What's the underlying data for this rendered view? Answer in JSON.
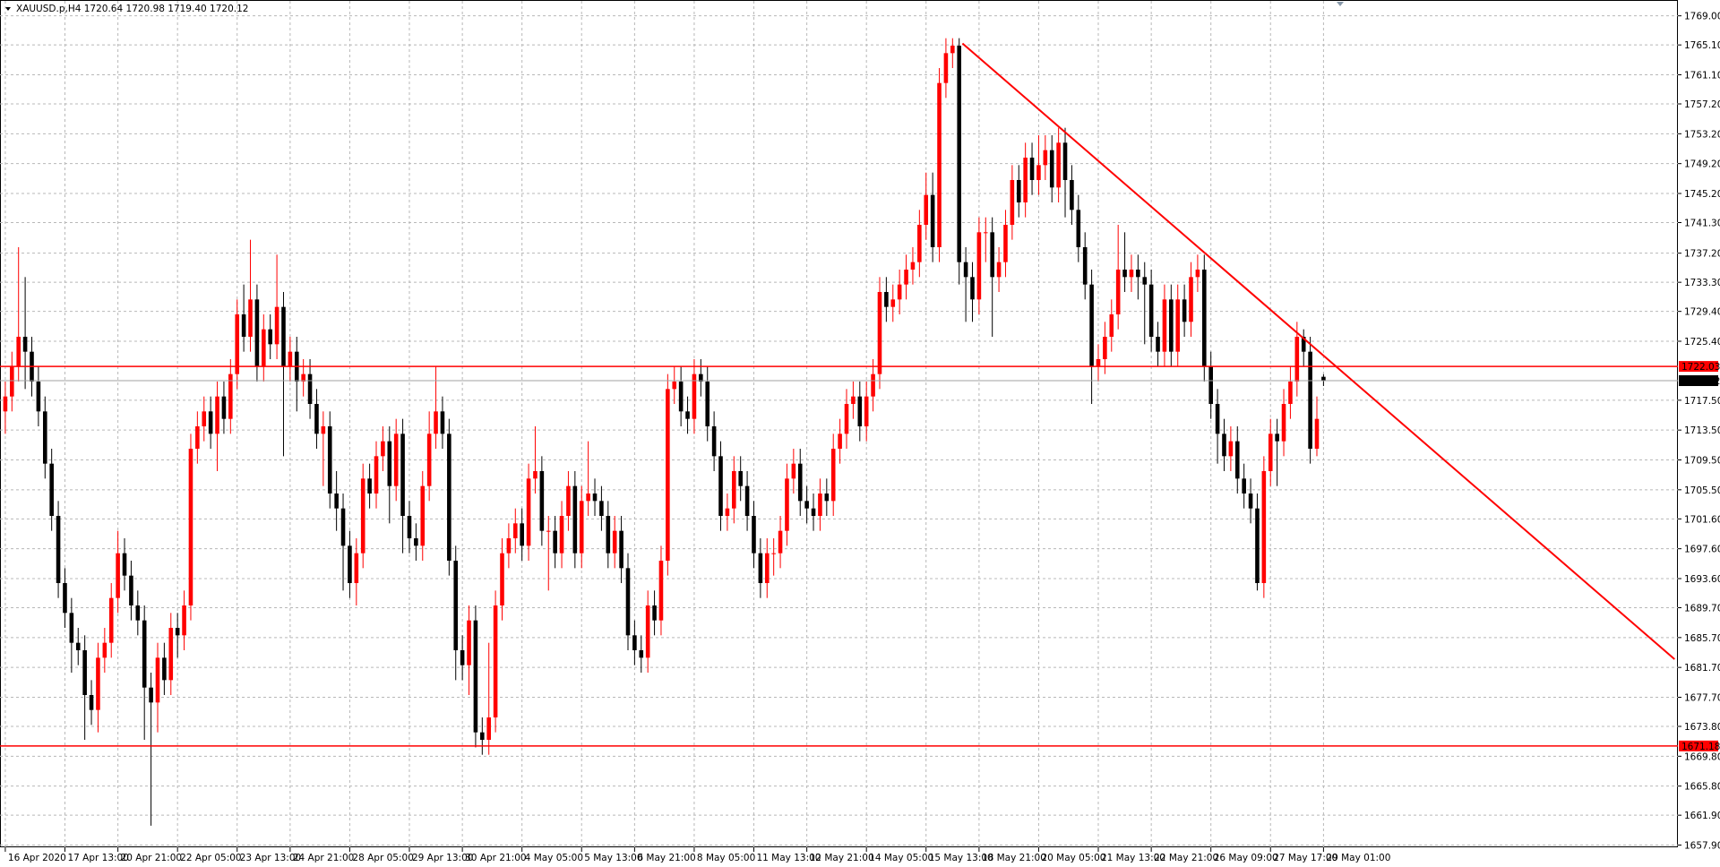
{
  "chart_data": {
    "type": "candlestick",
    "title": "XAUUSD.p,H4  1720.64 1720.98 1719.40 1720.12",
    "up_color": "#ff0000",
    "down_color": "#000000",
    "grid": true,
    "xlim": [
      -0.8,
      252.5
    ],
    "ylim": [
      1657.6,
      1771.0
    ],
    "yticks": [
      {
        "value": 1769,
        "label": "1769.00"
      },
      {
        "value": 1765.1,
        "label": "1765.10"
      },
      {
        "value": 1761.1,
        "label": "1761.10"
      },
      {
        "value": 1757.2,
        "label": "1757.20"
      },
      {
        "value": 1753.2,
        "label": "1753.20"
      },
      {
        "value": 1749.2,
        "label": "1749.20"
      },
      {
        "value": 1745.2,
        "label": "1745.20"
      },
      {
        "value": 1741.3,
        "label": "1741.30"
      },
      {
        "value": 1737.2,
        "label": "1737.20"
      },
      {
        "value": 1733.3,
        "label": "1733.30"
      },
      {
        "value": 1729.4,
        "label": "1729.40"
      },
      {
        "value": 1725.4,
        "label": "1725.40"
      },
      {
        "value": 1717.5,
        "label": "1717.50"
      },
      {
        "value": 1713.5,
        "label": "1713.50"
      },
      {
        "value": 1709.5,
        "label": "1709.50"
      },
      {
        "value": 1705.5,
        "label": "1705.50"
      },
      {
        "value": 1701.6,
        "label": "1701.60"
      },
      {
        "value": 1697.6,
        "label": "1697.60"
      },
      {
        "value": 1693.6,
        "label": "1693.60"
      },
      {
        "value": 1689.7,
        "label": "1689.70"
      },
      {
        "value": 1685.7,
        "label": "1685.70"
      },
      {
        "value": 1681.7,
        "label": "1681.70"
      },
      {
        "value": 1677.7,
        "label": "1677.70"
      },
      {
        "value": 1673.8,
        "label": "1673.80"
      },
      {
        "value": 1669.8,
        "label": "1669.80"
      },
      {
        "value": 1665.8,
        "label": "1665.80"
      },
      {
        "value": 1661.9,
        "label": "1661.90"
      },
      {
        "value": 1657.9,
        "label": "1657.90"
      }
    ],
    "categories": [
      "16 Apr 2020",
      null,
      null,
      null,
      null,
      null,
      null,
      null,
      null,
      "17 Apr 13:00",
      null,
      null,
      null,
      null,
      null,
      null,
      null,
      "20 Apr 21:00",
      null,
      null,
      null,
      null,
      null,
      null,
      null,
      null,
      "22 Apr 05:00",
      null,
      null,
      null,
      null,
      null,
      null,
      null,
      null,
      "23 Apr 13:00",
      null,
      null,
      null,
      null,
      null,
      null,
      null,
      "24 Apr 21:00",
      null,
      null,
      null,
      null,
      null,
      null,
      null,
      null,
      "28 Apr 05:00",
      null,
      null,
      null,
      null,
      null,
      null,
      null,
      null,
      "29 Apr 13:00",
      null,
      null,
      null,
      null,
      null,
      null,
      null,
      "30 Apr 21:00",
      null,
      null,
      null,
      null,
      null,
      null,
      null,
      null,
      "4 May 05:00",
      null,
      null,
      null,
      null,
      null,
      null,
      null,
      null,
      "5 May 13:00",
      null,
      null,
      null,
      null,
      null,
      null,
      null,
      "6 May 21:00",
      null,
      null,
      null,
      null,
      null,
      null,
      null,
      null,
      "8 May 05:00",
      null,
      null,
      null,
      null,
      null,
      null,
      null,
      null,
      "11 May 13:00",
      null,
      null,
      null,
      null,
      null,
      null,
      null,
      "12 May 21:00",
      null,
      null,
      null,
      null,
      null,
      null,
      null,
      null,
      "14 May 05:00",
      null,
      null,
      null,
      null,
      null,
      null,
      null,
      null,
      "15 May 13:00",
      null,
      null,
      null,
      null,
      null,
      null,
      null,
      "18 May 21:00",
      null,
      null,
      null,
      null,
      null,
      null,
      null,
      null,
      "20 May 05:00",
      null,
      null,
      null,
      null,
      null,
      null,
      null,
      null,
      "21 May 13:00",
      null,
      null,
      null,
      null,
      null,
      null,
      null,
      "22 May 21:00",
      null,
      null,
      null,
      null,
      null,
      null,
      null,
      null,
      "26 May 09:00",
      null,
      null,
      null,
      null,
      null,
      null,
      null,
      null,
      "27 May 17:00",
      null,
      null,
      null,
      null,
      null,
      null,
      null,
      "29 May 01:00"
    ],
    "open": [
      1716,
      1718,
      1722,
      1726,
      1724,
      1720,
      1716,
      1709,
      1702,
      1693,
      1689,
      1685,
      1684,
      1678,
      1676,
      1683,
      1685,
      1691,
      1697,
      1694,
      1690,
      1688,
      1679,
      1677,
      1683,
      1680,
      1687,
      1686,
      1690,
      1711,
      1714,
      1716,
      1713,
      1718,
      1715,
      1721,
      1729,
      1726,
      1731,
      1722,
      1727,
      1725,
      1730,
      1722,
      1724,
      1720,
      1721,
      1717,
      1713,
      1714,
      1705,
      1703,
      1698,
      1693,
      1697,
      1707,
      1705,
      1710,
      1712,
      1706,
      1713,
      1702,
      1699,
      1698,
      1706,
      1713,
      1716,
      1713,
      1696,
      1684,
      1682,
      1688,
      1673,
      1672,
      1675,
      1690,
      1697,
      1699,
      1701,
      1698,
      1707,
      1708,
      1700,
      1700,
      1697,
      1702,
      1706,
      1697,
      1704,
      1705,
      1704,
      1702,
      1697,
      1700,
      1695,
      1686,
      1684,
      1683,
      1690,
      1688,
      1696,
      1719,
      1720,
      1716,
      1715,
      1721,
      1720,
      1714,
      1710,
      1702,
      1703,
      1708,
      1706,
      1702,
      1697,
      1693,
      1697,
      1697,
      1700,
      1707,
      1709,
      1704,
      1703,
      1702,
      1705,
      1704,
      1711,
      1713,
      1717,
      1718,
      1714,
      1718,
      1721,
      1732,
      1730,
      1731,
      1733,
      1735,
      1736,
      1741,
      1745,
      1738,
      1760,
      1764,
      1765,
      1736,
      1734,
      1731,
      1740,
      1740,
      1734,
      1736,
      1741,
      1747,
      1744,
      1750,
      1747,
      1749,
      1751,
      1746,
      1752,
      1747,
      1743,
      1738,
      1733,
      1722,
      1723,
      1726,
      1729,
      1735,
      1734,
      1735,
      1734,
      1733,
      1726,
      1724,
      1731,
      1724,
      1731,
      1728,
      1734,
      1735,
      1722,
      1717,
      1713,
      1710,
      1712,
      1707,
      1705,
      1703,
      1693,
      1708,
      1713,
      1712,
      1717,
      1720,
      1726,
      1724,
      1711,
      1720.64
    ],
    "high": [
      1720,
      1724,
      1738,
      1734,
      1726,
      1722,
      1718,
      1711,
      1704,
      1695,
      1691,
      1687,
      1686,
      1680,
      1685,
      1687,
      1693,
      1700,
      1699,
      1696,
      1692,
      1690,
      1681,
      1685,
      1685,
      1689,
      1689,
      1692,
      1713,
      1716,
      1718,
      1718,
      1720,
      1720,
      1723,
      1731,
      1733,
      1739,
      1733,
      1729,
      1729,
      1737,
      1732,
      1726,
      1726,
      1723,
      1723,
      1719,
      1716,
      1716,
      1708,
      1705,
      1700,
      1699,
      1709,
      1709,
      1712,
      1714,
      1714,
      1715,
      1715,
      1704,
      1701,
      1708,
      1716,
      1722,
      1718,
      1715,
      1698,
      1686,
      1690,
      1690,
      1675,
      1685,
      1692,
      1699,
      1701,
      1703,
      1703,
      1709,
      1714,
      1710,
      1702,
      1702,
      1704,
      1708,
      1708,
      1706,
      1712,
      1707,
      1706,
      1704,
      1702,
      1702,
      1697,
      1688,
      1686,
      1692,
      1692,
      1698,
      1721,
      1722,
      1722,
      1718,
      1723,
      1723,
      1722,
      1716,
      1712,
      1705,
      1710,
      1710,
      1708,
      1704,
      1699,
      1699,
      1699,
      1702,
      1709,
      1711,
      1711,
      1706,
      1705,
      1707,
      1707,
      1713,
      1715,
      1719,
      1720,
      1720,
      1720,
      1723,
      1734,
      1734,
      1733,
      1735,
      1737,
      1738,
      1743,
      1748,
      1748,
      1762,
      1766,
      1766,
      1766,
      1738,
      1736,
      1742,
      1742,
      1742,
      1738,
      1743,
      1749,
      1749,
      1752,
      1752,
      1753,
      1753,
      1753,
      1754,
      1754,
      1749,
      1745,
      1740,
      1735,
      1725,
      1728,
      1731,
      1741,
      1740,
      1737,
      1737,
      1736,
      1735,
      1728,
      1733,
      1733,
      1733,
      1733,
      1736,
      1737,
      1737,
      1724,
      1719,
      1715,
      1714,
      1714,
      1709,
      1707,
      1705,
      1710,
      1715,
      1715,
      1719,
      1722,
      1728,
      1727,
      1726,
      1718,
      1720.98
    ],
    "low": [
      1713,
      1716,
      1720,
      1719,
      1718,
      1714,
      1707,
      1700,
      1691,
      1687,
      1681,
      1682,
      1672,
      1674,
      1673,
      1681,
      1683,
      1689,
      1692,
      1688,
      1686,
      1672,
      1660.5,
      1673,
      1678,
      1678,
      1683,
      1684,
      1688,
      1709,
      1712,
      1711,
      1708,
      1713,
      1713,
      1719,
      1724,
      1724,
      1720,
      1720,
      1723,
      1723,
      1710,
      1720,
      1716,
      1718,
      1715,
      1711,
      1706,
      1703,
      1700,
      1692,
      1691,
      1690,
      1695,
      1703,
      1703,
      1708,
      1701,
      1704,
      1697,
      1697,
      1696,
      1696,
      1704,
      1711,
      1711,
      1694,
      1680,
      1680,
      1678,
      1671,
      1670,
      1670,
      1673,
      1688,
      1695,
      1697,
      1696,
      1696,
      1705,
      1698,
      1692,
      1695,
      1695,
      1700,
      1695,
      1695,
      1702,
      1702,
      1700,
      1695,
      1695,
      1693,
      1684,
      1682,
      1681,
      1681,
      1686,
      1686,
      1694,
      1717,
      1714,
      1713,
      1713,
      1718,
      1712,
      1708,
      1700,
      1700,
      1701,
      1704,
      1700,
      1695,
      1691,
      1691,
      1694,
      1695,
      1698,
      1705,
      1702,
      1701,
      1700,
      1700,
      1702,
      1702,
      1709,
      1711,
      1715,
      1712,
      1712,
      1716,
      1719,
      1728,
      1728,
      1729,
      1731,
      1733,
      1734,
      1739,
      1736,
      1736,
      1758,
      1762,
      1733,
      1728,
      1728,
      1729,
      1736,
      1726,
      1732,
      1734,
      1739,
      1742,
      1742,
      1745,
      1745,
      1747,
      1744,
      1744,
      1742,
      1741,
      1736,
      1731,
      1717,
      1720,
      1721,
      1724,
      1727,
      1732,
      1732,
      1731,
      1725,
      1724,
      1722,
      1722,
      1722,
      1722,
      1726,
      1726,
      1732,
      1720,
      1715,
      1709,
      1708,
      1708,
      1705,
      1703,
      1701,
      1692,
      1691,
      1706,
      1706,
      1710,
      1715,
      1718,
      1722,
      1709,
      1710,
      1719.4
    ],
    "close": [
      1718,
      1722,
      1726,
      1724,
      1720,
      1716,
      1709,
      1702,
      1693,
      1689,
      1685,
      1684,
      1678,
      1676,
      1683,
      1685,
      1691,
      1697,
      1694,
      1690,
      1688,
      1679,
      1677,
      1683,
      1680,
      1687,
      1686,
      1690,
      1711,
      1714,
      1716,
      1713,
      1718,
      1715,
      1721,
      1729,
      1726,
      1731,
      1722,
      1727,
      1725,
      1730,
      1722,
      1724,
      1720,
      1721,
      1717,
      1713,
      1714,
      1705,
      1703,
      1698,
      1693,
      1697,
      1707,
      1705,
      1710,
      1712,
      1706,
      1713,
      1702,
      1699,
      1698,
      1706,
      1713,
      1716,
      1713,
      1696,
      1684,
      1682,
      1688,
      1673,
      1672,
      1675,
      1690,
      1697,
      1699,
      1701,
      1698,
      1707,
      1708,
      1700,
      1700,
      1697,
      1702,
      1706,
      1697,
      1704,
      1705,
      1704,
      1702,
      1697,
      1700,
      1695,
      1686,
      1684,
      1683,
      1690,
      1688,
      1696,
      1719,
      1720,
      1716,
      1715,
      1721,
      1720,
      1714,
      1710,
      1702,
      1703,
      1708,
      1706,
      1702,
      1697,
      1693,
      1697,
      1697,
      1700,
      1707,
      1709,
      1704,
      1703,
      1702,
      1705,
      1704,
      1711,
      1713,
      1717,
      1718,
      1714,
      1718,
      1721,
      1732,
      1730,
      1731,
      1733,
      1735,
      1736,
      1741,
      1745,
      1738,
      1760,
      1764,
      1765,
      1736,
      1734,
      1731,
      1740,
      1740,
      1734,
      1736,
      1741,
      1747,
      1744,
      1750,
      1747,
      1749,
      1751,
      1746,
      1752,
      1747,
      1743,
      1738,
      1733,
      1722,
      1723,
      1726,
      1729,
      1735,
      1734,
      1735,
      1734,
      1733,
      1726,
      1724,
      1731,
      1724,
      1731,
      1728,
      1734,
      1735,
      1722,
      1717,
      1713,
      1710,
      1712,
      1707,
      1705,
      1703,
      1693,
      1708,
      1713,
      1712,
      1717,
      1720,
      1726,
      1724,
      1711,
      1715,
      1720.12
    ],
    "levels": [
      1722.03,
      1671.18
    ],
    "level_color": "#ff0000",
    "bid": 1720.12,
    "trendline": {
      "x": [
        144.5,
        252
      ],
      "y": [
        1765.3,
        1682.8
      ],
      "color": "#ff0000"
    }
  }
}
